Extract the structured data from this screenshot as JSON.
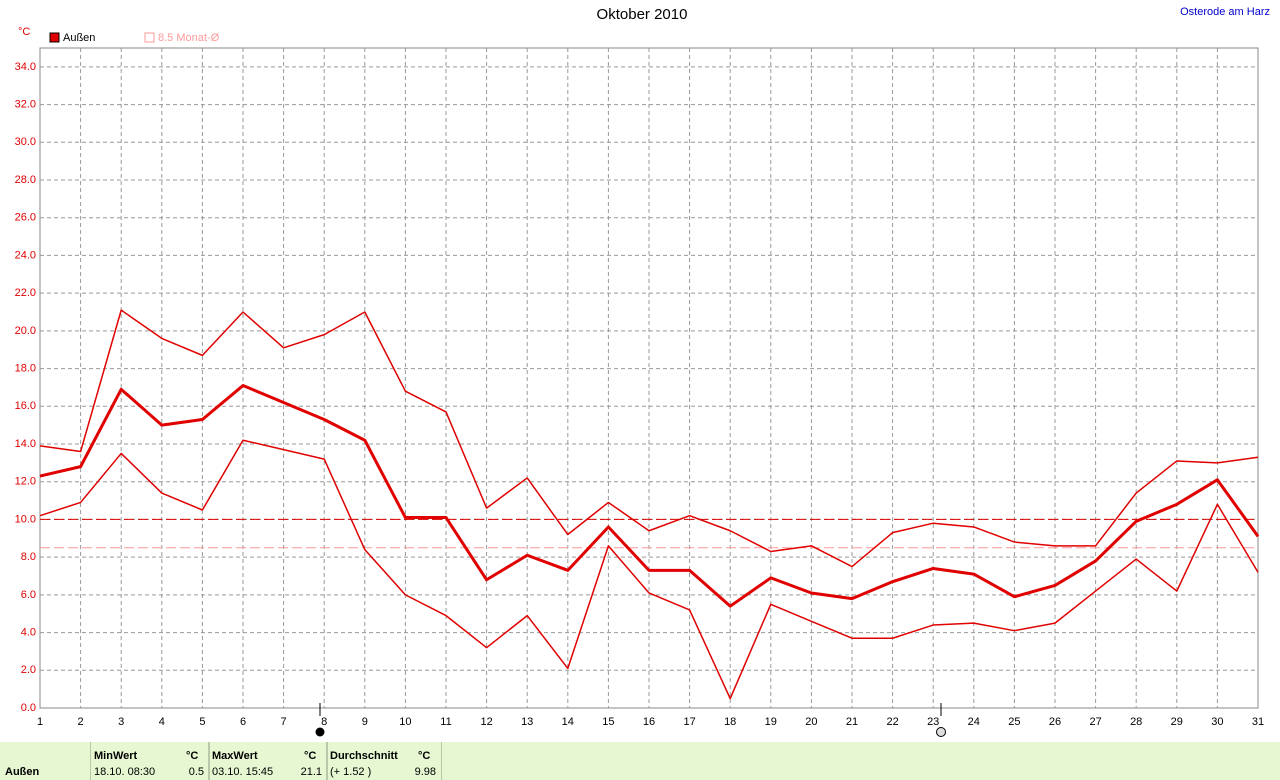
{
  "chart_data": {
    "type": "line",
    "title": "Oktober 2010",
    "location": "Osterode am Harz",
    "y_unit": "°C",
    "x": [
      1,
      2,
      3,
      4,
      5,
      6,
      7,
      8,
      9,
      10,
      11,
      12,
      13,
      14,
      15,
      16,
      17,
      18,
      19,
      20,
      21,
      22,
      23,
      24,
      25,
      26,
      27,
      28,
      29,
      30,
      31
    ],
    "xlim": [
      1,
      31
    ],
    "ylim": [
      0,
      35
    ],
    "yticks": [
      {
        "value": 0,
        "label": "0.0"
      },
      {
        "value": 2,
        "label": "2.0"
      },
      {
        "value": 4,
        "label": "4.0"
      },
      {
        "value": 6,
        "label": "6.0"
      },
      {
        "value": 8,
        "label": "8.0"
      },
      {
        "value": 10,
        "label": "10.0"
      },
      {
        "value": 12,
        "label": "12.0"
      },
      {
        "value": 14,
        "label": "14.0"
      },
      {
        "value": 16,
        "label": "16.0"
      },
      {
        "value": 18,
        "label": "18.0"
      },
      {
        "value": 20,
        "label": "20.0"
      },
      {
        "value": 22,
        "label": "22.0"
      },
      {
        "value": 24,
        "label": "24.0"
      },
      {
        "value": 26,
        "label": "26.0"
      },
      {
        "value": 28,
        "label": "28.0"
      },
      {
        "value": 30,
        "label": "30.0"
      },
      {
        "value": 32,
        "label": "32.0"
      },
      {
        "value": 34,
        "label": "34.0"
      }
    ],
    "grid": true,
    "series": [
      {
        "name": "Außen",
        "color": "#e00000",
        "width": 3,
        "values": [
          12.3,
          12.8,
          16.9,
          15.0,
          15.3,
          17.1,
          16.2,
          15.3,
          14.2,
          10.1,
          10.1,
          6.8,
          8.1,
          7.3,
          9.6,
          7.3,
          7.3,
          5.4,
          6.9,
          6.1,
          5.8,
          6.7,
          7.4,
          7.1,
          5.9,
          6.5,
          7.8,
          9.9,
          10.8,
          12.1,
          9.1
        ]
      },
      {
        "color": "#e00000",
        "width": 1.5,
        "values": [
          13.9,
          13.6,
          21.1,
          19.6,
          18.7,
          21.0,
          19.1,
          19.8,
          21.0,
          16.8,
          15.7,
          10.6,
          12.2,
          9.2,
          10.9,
          9.4,
          10.2,
          9.4,
          8.3,
          8.6,
          7.5,
          9.3,
          9.8,
          9.6,
          8.8,
          8.6,
          8.6,
          11.4,
          13.1,
          13.0,
          13.3
        ]
      },
      {
        "color": "#e00000",
        "width": 1.5,
        "values": [
          10.2,
          10.9,
          13.5,
          11.4,
          10.5,
          14.2,
          13.7,
          13.2,
          8.4,
          6.0,
          4.9,
          3.2,
          4.9,
          2.1,
          8.6,
          6.1,
          5.2,
          0.5,
          5.5,
          4.6,
          3.7,
          3.7,
          4.4,
          4.5,
          4.1,
          4.5,
          6.2,
          7.9,
          6.2,
          10.8,
          7.2
        ]
      }
    ],
    "reference_lines": [
      {
        "value": 10.0,
        "color": "#e00000"
      },
      {
        "value": 8.5,
        "label": "8.5 Monat-Ø",
        "color": "#ff9999"
      }
    ]
  },
  "stats": {
    "row_label": "Außen",
    "columns": [
      {
        "header": "MinWert",
        "unit": "°C",
        "when": "18.10.  08:30",
        "value": "0.5"
      },
      {
        "header": "MaxWert",
        "unit": "°C",
        "when": "03.10.  15:45",
        "value": "21.1"
      },
      {
        "header": "Durchschnitt",
        "unit": "°C",
        "when": "(+ 1.52 )",
        "value": "9.98"
      }
    ]
  }
}
